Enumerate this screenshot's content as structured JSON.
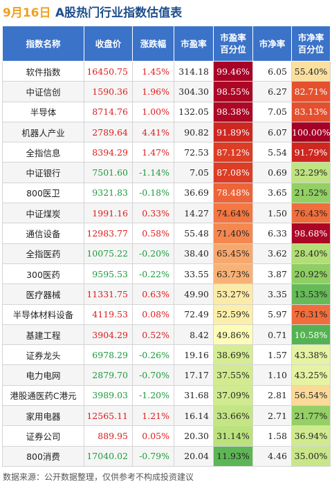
{
  "header": {
    "date": "9月16日",
    "title": "A股热门行业指数估值表"
  },
  "columns": [
    "指数名称",
    "收盘价",
    "涨跌幅",
    "市盈率",
    "市盈率\n百分位",
    "市净率",
    "市净率\n百分位"
  ],
  "footer": "数据来源：公开数据整理，仅供参考不构成投资建议",
  "chart_data": {
    "type": "table",
    "rows": [
      {
        "name": "软件指数",
        "close": "16450.75",
        "change": "1.45%",
        "pe": "314.18",
        "pe_pct": "99.46%",
        "pb": "6.05",
        "pb_pct": "55.40%",
        "dir": "up",
        "pe_v": 99.46,
        "pb_v": 55.4
      },
      {
        "name": "中证信创",
        "close": "1590.36",
        "change": "1.96%",
        "pe": "304.30",
        "pe_pct": "98.55%",
        "pb": "6.27",
        "pb_pct": "82.71%",
        "dir": "up",
        "pe_v": 98.55,
        "pb_v": 82.71
      },
      {
        "name": "半导体",
        "close": "8714.76",
        "change": "1.00%",
        "pe": "132.05",
        "pe_pct": "98.38%",
        "pb": "7.05",
        "pb_pct": "83.13%",
        "dir": "up",
        "pe_v": 98.38,
        "pb_v": 83.13
      },
      {
        "name": "机器人产业",
        "close": "2789.64",
        "change": "4.41%",
        "pe": "90.82",
        "pe_pct": "91.89%",
        "pb": "6.07",
        "pb_pct": "100.00%",
        "dir": "up",
        "pe_v": 91.89,
        "pb_v": 100.0
      },
      {
        "name": "全指信息",
        "close": "8394.29",
        "change": "1.47%",
        "pe": "72.53",
        "pe_pct": "87.12%",
        "pb": "5.54",
        "pb_pct": "91.79%",
        "dir": "up",
        "pe_v": 87.12,
        "pb_v": 91.79
      },
      {
        "name": "中证银行",
        "close": "7501.60",
        "change": "-1.14%",
        "pe": "7.05",
        "pe_pct": "87.08%",
        "pb": "0.69",
        "pb_pct": "32.29%",
        "dir": "down",
        "pe_v": 87.08,
        "pb_v": 32.29
      },
      {
        "name": "800医卫",
        "close": "9321.83",
        "change": "-0.18%",
        "pe": "36.69",
        "pe_pct": "78.48%",
        "pb": "3.65",
        "pb_pct": "21.52%",
        "dir": "down",
        "pe_v": 78.48,
        "pb_v": 21.52
      },
      {
        "name": "中证煤炭",
        "close": "1991.16",
        "change": "0.33%",
        "pe": "14.27",
        "pe_pct": "74.64%",
        "pb": "1.50",
        "pb_pct": "76.43%",
        "dir": "up",
        "pe_v": 74.64,
        "pb_v": 76.43
      },
      {
        "name": "通信设备",
        "close": "12983.77",
        "change": "0.58%",
        "pe": "55.48",
        "pe_pct": "71.40%",
        "pb": "6.33",
        "pb_pct": "98.68%",
        "dir": "up",
        "pe_v": 71.4,
        "pb_v": 98.68
      },
      {
        "name": "全指医药",
        "close": "10075.22",
        "change": "-0.20%",
        "pe": "38.40",
        "pe_pct": "65.45%",
        "pb": "3.62",
        "pb_pct": "28.40%",
        "dir": "down",
        "pe_v": 65.45,
        "pb_v": 28.4
      },
      {
        "name": "300医药",
        "close": "9595.53",
        "change": "-0.22%",
        "pe": "33.55",
        "pe_pct": "63.73%",
        "pb": "3.87",
        "pb_pct": "20.92%",
        "dir": "down",
        "pe_v": 63.73,
        "pb_v": 20.92
      },
      {
        "name": "医疗器械",
        "close": "11331.75",
        "change": "0.63%",
        "pe": "49.90",
        "pe_pct": "53.27%",
        "pb": "3.35",
        "pb_pct": "13.53%",
        "dir": "up",
        "pe_v": 53.27,
        "pb_v": 13.53
      },
      {
        "name": "半导体材料设备",
        "close": "4119.53",
        "change": "0.08%",
        "pe": "72.49",
        "pe_pct": "52.59%",
        "pb": "5.97",
        "pb_pct": "76.31%",
        "dir": "up",
        "pe_v": 52.59,
        "pb_v": 76.31
      },
      {
        "name": "基建工程",
        "close": "3904.29",
        "change": "0.52%",
        "pe": "8.42",
        "pe_pct": "49.86%",
        "pb": "0.71",
        "pb_pct": "10.58%",
        "dir": "up",
        "pe_v": 49.86,
        "pb_v": 10.58
      },
      {
        "name": "证券龙头",
        "close": "6978.29",
        "change": "-0.26%",
        "pe": "19.16",
        "pe_pct": "38.69%",
        "pb": "1.57",
        "pb_pct": "43.38%",
        "dir": "down",
        "pe_v": 38.69,
        "pb_v": 43.38
      },
      {
        "name": "电力电网",
        "close": "2879.70",
        "change": "-0.70%",
        "pe": "17.17",
        "pe_pct": "37.55%",
        "pb": "1.10",
        "pb_pct": "43.25%",
        "dir": "down",
        "pe_v": 37.55,
        "pb_v": 43.25
      },
      {
        "name": "港股通医药C港元",
        "close": "3989.03",
        "change": "-1.20%",
        "pe": "31.68",
        "pe_pct": "37.09%",
        "pb": "2.81",
        "pb_pct": "56.54%",
        "dir": "down",
        "pe_v": 37.09,
        "pb_v": 56.54
      },
      {
        "name": "家用电器",
        "close": "12565.11",
        "change": "1.21%",
        "pe": "16.14",
        "pe_pct": "33.66%",
        "pb": "2.71",
        "pb_pct": "21.77%",
        "dir": "up",
        "pe_v": 33.66,
        "pb_v": 21.77
      },
      {
        "name": "证券公司",
        "close": "889.95",
        "change": "0.05%",
        "pe": "20.30",
        "pe_pct": "31.14%",
        "pb": "1.58",
        "pb_pct": "36.94%",
        "dir": "up",
        "pe_v": 31.14,
        "pb_v": 36.94
      },
      {
        "name": "800消费",
        "close": "17040.02",
        "change": "-0.79%",
        "pe": "20.04",
        "pe_pct": "11.93%",
        "pb": "4.46",
        "pb_pct": "35.00%",
        "dir": "down",
        "pe_v": 11.93,
        "pb_v": 35.0
      }
    ]
  },
  "colors": {
    "header_bg": "#3b73c8",
    "up": "#e0191a",
    "down": "#1c9a3b",
    "heat_high": "#a50026",
    "heat_mid": "#fdfdb8",
    "heat_low": "#1a9641"
  }
}
